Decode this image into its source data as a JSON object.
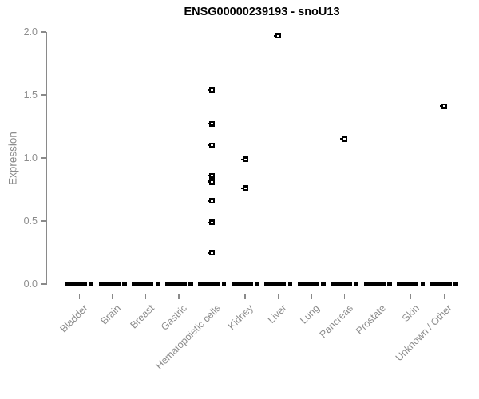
{
  "title": "ENSG00000239193 - snoU13",
  "colors": {
    "axis": "#8a8a8a",
    "label_gray": "#8c8c8c",
    "point": "#000000",
    "title": "#000000",
    "background": "#ffffff"
  },
  "chart_data": {
    "type": "scatter",
    "title": "ENSG00000239193 - snoU13",
    "xlabel": "",
    "ylabel": "Expression",
    "ylim": [
      0.0,
      2.0
    ],
    "yticks": [
      0.0,
      0.5,
      1.0,
      1.5,
      2.0
    ],
    "grid": false,
    "legend": "none",
    "categories": [
      "Bladder",
      "Brain",
      "Breast",
      "Gastric",
      "Hematopoietic cells",
      "Kidney",
      "Liver",
      "Lung",
      "Pancreas",
      "Prostate",
      "Skin",
      "Unknown / Other"
    ],
    "points": [
      {
        "category": "Hematopoietic cells",
        "values": [
          1.54,
          1.27,
          1.1,
          0.86,
          0.82,
          0.81,
          0.66,
          0.49,
          0.25
        ]
      },
      {
        "category": "Kidney",
        "values": [
          0.99,
          0.76
        ]
      },
      {
        "category": "Liver",
        "values": [
          1.97
        ]
      },
      {
        "category": "Pancreas",
        "values": [
          1.15
        ]
      },
      {
        "category": "Unknown / Other",
        "values": [
          1.41
        ]
      }
    ],
    "zero_expression_dash_on_all_categories": true
  }
}
